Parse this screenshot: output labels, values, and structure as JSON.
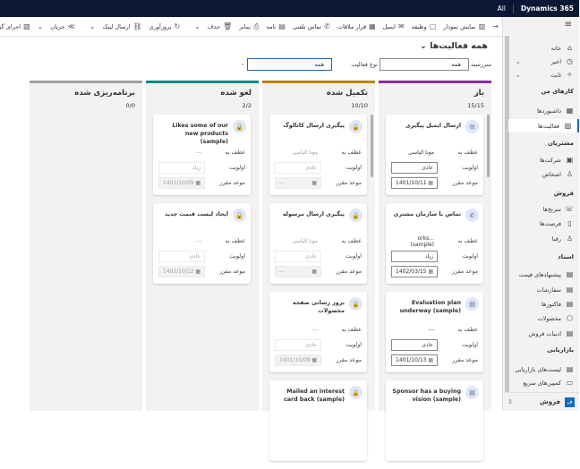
{
  "topbar": {
    "brand": "Dynamics 365",
    "scope": "All"
  },
  "commands": [
    {
      "icon": "arrow-icon",
      "glyph": "→",
      "label": ""
    },
    {
      "icon": "chart-icon",
      "glyph": "▥",
      "label": "نمایش نمودار"
    },
    {
      "icon": "task-icon",
      "glyph": "▢",
      "label": "وظیفه"
    },
    {
      "icon": "email-icon",
      "glyph": "✉",
      "label": "ایمیل"
    },
    {
      "icon": "calendar-icon",
      "glyph": "▦",
      "label": "قرار ملاقات"
    },
    {
      "icon": "phone-icon",
      "glyph": "✆",
      "label": "تماس تلفنی"
    },
    {
      "icon": "letter-icon",
      "glyph": "▤",
      "label": "نامه"
    },
    {
      "icon": "fax-icon",
      "glyph": "⎙",
      "label": "نمابر"
    },
    {
      "icon": "delete-icon",
      "glyph": "🗑",
      "label": "حذف"
    },
    {
      "icon": "chevron-down-icon",
      "glyph": "⌄",
      "label": "",
      "sep": true
    },
    {
      "icon": "refresh-icon",
      "glyph": "↻",
      "label": "بروزآوری"
    },
    {
      "icon": "link-icon",
      "glyph": "⛓",
      "label": "ارسال لینک"
    },
    {
      "icon": "chevron-down-icon",
      "glyph": "⌄",
      "label": "",
      "sep": true
    },
    {
      "icon": "flow-icon",
      "glyph": "≫",
      "label": "جریان"
    },
    {
      "icon": "chevron-down-icon",
      "glyph": "⌄",
      "label": ""
    },
    {
      "icon": "report-icon",
      "glyph": "▧",
      "label": "اجرای گزارش"
    }
  ],
  "sidebar": {
    "items": [
      {
        "label": "خانه",
        "icon": "home-icon",
        "glyph": "⌂"
      },
      {
        "label": "اخیر",
        "icon": "clock-icon",
        "glyph": "◷",
        "chev": true
      },
      {
        "label": "ثابت",
        "icon": "pin-icon",
        "glyph": "✧",
        "chev": true
      },
      {
        "label": "داشبوردها",
        "icon": "dashboard-icon",
        "glyph": "▦"
      },
      {
        "label": "فعالیت‌ها",
        "icon": "activities-icon",
        "glyph": "▨",
        "selected": true
      },
      {
        "label": "شرکت‌ها",
        "icon": "accounts-icon",
        "glyph": "▣"
      },
      {
        "label": "اشخاص",
        "icon": "contacts-icon",
        "glyph": "♙"
      },
      {
        "label": "سرنخ‌ها",
        "icon": "leads-icon",
        "glyph": "☏"
      },
      {
        "label": "فرصت‌ها",
        "icon": "opportunities-icon",
        "glyph": "▯"
      },
      {
        "label": "رقبا",
        "icon": "competitors-icon",
        "glyph": "♙"
      },
      {
        "label": "پیشنهادهای قیمت",
        "icon": "quotes-icon",
        "glyph": "▤"
      },
      {
        "label": "سفارشات",
        "icon": "orders-icon",
        "glyph": "▤"
      },
      {
        "label": "فاکتورها",
        "icon": "invoices-icon",
        "glyph": "▤"
      },
      {
        "label": "محصولات",
        "icon": "products-icon",
        "glyph": "⬡"
      },
      {
        "label": "ادبیات فروش",
        "icon": "sales-literature-icon",
        "glyph": "▤"
      },
      {
        "label": "لیست‌های بازاریابی",
        "icon": "marketing-lists-icon",
        "glyph": "▤"
      },
      {
        "label": "کمپین‌های سریع",
        "icon": "quick-campaigns-icon",
        "glyph": "▭"
      }
    ],
    "groups": [
      "کارهای من",
      "مشتریان",
      "فروش",
      "اسناد",
      "بازاریابی"
    ],
    "area": {
      "badge": "ف",
      "label": "فروش"
    }
  },
  "view": {
    "title": "همه فعالیت‌ها",
    "filter1_label": "سررسید",
    "filter1_value": "همه",
    "filter2_label": "نوع فعالیت",
    "filter2_value": "همه"
  },
  "fields": {
    "regarding": "عطف به",
    "priority": "اولویت",
    "due": "موعد مقرر"
  },
  "columns": [
    {
      "title": "باز",
      "count": "15/15",
      "color": "#8a2da5",
      "cards": [
        {
          "title": "ارسال ایمیل پیگیری",
          "glyph": "✉",
          "icon": "email-icon",
          "regarding": "مونا الیاسی",
          "priority": "عادی",
          "due": "1401/10/11"
        },
        {
          "title": "تماس با سازمان مشتری",
          "glyph": "✆",
          "icon": "phone-icon",
          "regarding": "...orks (sample)",
          "priority": "زیاد",
          "due": "1402/03/15"
        },
        {
          "title": "Evaluation plan underway (sample)",
          "glyph": "▤",
          "icon": "task-icon",
          "regarding": "---",
          "priority": "عادی",
          "due": "1401/10/13"
        },
        {
          "title": "Sponsor has a buying vision (sample)",
          "glyph": "▤",
          "icon": "task-icon"
        }
      ]
    },
    {
      "title": "تکمیل شده",
      "count": "10/10",
      "color": "#b8860b",
      "disabled": true,
      "cards": [
        {
          "title": "پیگیری ارسال کاتالوگ",
          "glyph": "🔒",
          "icon": "lock-icon",
          "regarding": "مونا الیاسی",
          "priority": "عادی",
          "due": "---"
        },
        {
          "title": "پیگیری ارسال مرسوله",
          "glyph": "🔒",
          "icon": "lock-icon",
          "regarding": "مونا الیاسی",
          "priority": "عادی",
          "due": "---"
        },
        {
          "title": "بروز رسانی صفحه محصولات",
          "glyph": "🔒",
          "icon": "lock-icon",
          "regarding": "---",
          "priority": "عادی",
          "due": "1401/10/09"
        },
        {
          "title": "Mailed an interest card back (sample)",
          "glyph": "🔒",
          "icon": "lock-icon"
        }
      ]
    },
    {
      "title": "لغو شده",
      "count": "2/2",
      "color": "#0f8a8a",
      "disabled": true,
      "cards": [
        {
          "title": "Likes some of our new products (sample)",
          "glyph": "🔒",
          "icon": "lock-icon",
          "regarding": "---",
          "priority": "زیاد",
          "due": "1401/10/09"
        },
        {
          "title": "ایجاد لیست قیمت جدید",
          "glyph": "🔒",
          "icon": "lock-icon",
          "regarding": "---",
          "priority": "عادی",
          "due": "1401/10/12"
        }
      ]
    },
    {
      "title": "برنامه‌ریزی شده",
      "count": "0/0",
      "color": "#a19f9d",
      "cards": []
    }
  ]
}
